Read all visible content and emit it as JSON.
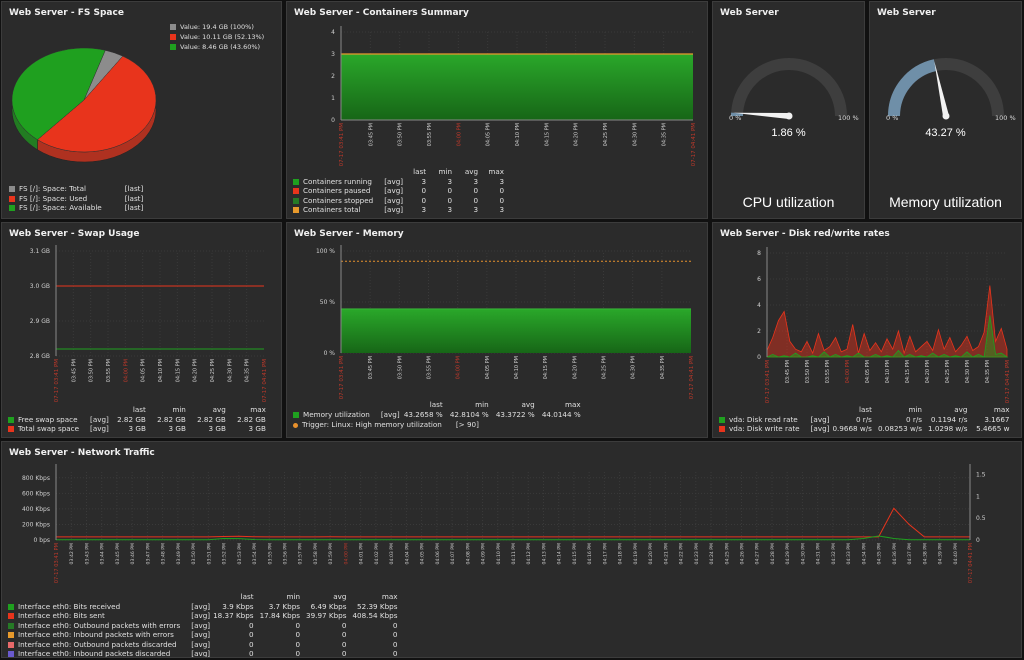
{
  "colors": {
    "green": "#1fa01f",
    "red": "#e8341c",
    "gray": "#8c8c8c",
    "orange": "#e89a2c",
    "pink": "#e86a6a",
    "purple": "#6a5acd",
    "darkgreen": "#267a26",
    "dashed": "#e8912c"
  },
  "fs": {
    "title": "Web Server - FS Space",
    "pie": [
      {
        "label": "Value: 19.4 GB (100%)",
        "color": "gray"
      },
      {
        "label": "Value: 10.11 GB (52.13%)",
        "color": "red"
      },
      {
        "label": "Value: 8.46 GB (43.60%)",
        "color": "green"
      }
    ],
    "slices": [
      {
        "name": "Total",
        "pct": 4.27,
        "color": "#8c8c8c"
      },
      {
        "name": "Used",
        "pct": 52.13,
        "color": "#e8341c"
      },
      {
        "name": "Available",
        "pct": 43.6,
        "color": "#1fa01f"
      }
    ],
    "legend": [
      {
        "name": "FS [/]: Space: Total",
        "agg": "[last]",
        "color": "gray"
      },
      {
        "name": "FS [/]: Space: Used",
        "agg": "[last]",
        "color": "red"
      },
      {
        "name": "FS [/]: Space: Available",
        "agg": "[last]",
        "color": "green"
      }
    ]
  },
  "containers": {
    "title": "Web Server - Containers Summary",
    "yticks": [
      "0",
      "1",
      "2",
      "3",
      "4"
    ],
    "xstart": "07-17 03:41 PM",
    "xend": "07-17 04:41 PM",
    "xticks": [
      "03:45 PM",
      "03:50 PM",
      "03:55 PM",
      "04:00 PM",
      "04:05 PM",
      "04:10 PM",
      "04:15 PM",
      "04:20 PM",
      "04:25 PM",
      "04:30 PM",
      "04:35 PM"
    ],
    "headers": [
      "last",
      "min",
      "avg",
      "max"
    ],
    "rows": [
      {
        "name": "Containers running",
        "agg": "[avg]",
        "vals": [
          "3",
          "3",
          "3",
          "3"
        ],
        "color": "green"
      },
      {
        "name": "Containers paused",
        "agg": "[avg]",
        "vals": [
          "0",
          "0",
          "0",
          "0"
        ],
        "color": "red"
      },
      {
        "name": "Containers stopped",
        "agg": "[avg]",
        "vals": [
          "0",
          "0",
          "0",
          "0"
        ],
        "color": "darkgreen"
      },
      {
        "name": "Containers total",
        "agg": "[avg]",
        "vals": [
          "3",
          "3",
          "3",
          "3"
        ],
        "color": "orange"
      }
    ]
  },
  "cpu": {
    "title": "Web Server",
    "min": "0 %",
    "max": "100 %",
    "value": "1.86 %",
    "level": 1.86,
    "label": "CPU utilization"
  },
  "mem": {
    "title": "Web Server",
    "min": "0 %",
    "max": "100 %",
    "value": "43.27 %",
    "level": 43.27,
    "label": "Memory utilization"
  },
  "swap": {
    "title": "Web Server - Swap Usage",
    "yticks": [
      "2.8 GB",
      "2.9 GB",
      "3.0 GB",
      "3.1 GB"
    ],
    "xstart": "07-17 03:41 PM",
    "xend": "07-17 04:41 PM",
    "xticks": [
      "03:45 PM",
      "03:50 PM",
      "03:55 PM",
      "04:00 PM",
      "04:05 PM",
      "04:10 PM",
      "04:15 PM",
      "04:20 PM",
      "04:25 PM",
      "04:30 PM",
      "04:35 PM"
    ],
    "headers": [
      "last",
      "min",
      "avg",
      "max"
    ],
    "rows": [
      {
        "name": "Free swap space",
        "agg": "[avg]",
        "vals": [
          "2.82 GB",
          "2.82 GB",
          "2.82 GB",
          "2.82 GB"
        ],
        "color": "green"
      },
      {
        "name": "Total swap space",
        "agg": "[avg]",
        "vals": [
          "3 GB",
          "3 GB",
          "3 GB",
          "3 GB"
        ],
        "color": "red"
      }
    ]
  },
  "memory": {
    "title": "Web Server - Memory",
    "yticks": [
      "0 %",
      "50 %",
      "100 %"
    ],
    "xstart": "07-17 03:41 PM",
    "xend": "07-17 04:41 PM",
    "xticks": [
      "03:45 PM",
      "03:50 PM",
      "03:55 PM",
      "04:00 PM",
      "04:05 PM",
      "04:10 PM",
      "04:15 PM",
      "04:20 PM",
      "04:25 PM",
      "04:30 PM",
      "04:35 PM"
    ],
    "headers": [
      "last",
      "min",
      "avg",
      "max"
    ],
    "rows": [
      {
        "name": "Memory utilization",
        "agg": "[avg]",
        "vals": [
          "43.2658 %",
          "42.8104 %",
          "43.3722 %",
          "44.0144 %"
        ],
        "color": "green"
      }
    ],
    "trigger": {
      "name": "Trigger: Linux: High memory utilization",
      "cond": "[> 90]"
    }
  },
  "disk": {
    "title": "Web Server - Disk red/write rates",
    "yticks": [
      "0",
      "2",
      "4",
      "6",
      "8"
    ],
    "xstart": "07-17 03:41 PM",
    "xend": "07-17 04:41 PM",
    "xticks": [
      "03:45 PM",
      "03:50 PM",
      "03:55 PM",
      "04:00 PM",
      "04:05 PM",
      "04:10 PM",
      "04:15 PM",
      "04:20 PM",
      "04:25 PM",
      "04:30 PM",
      "04:35 PM"
    ],
    "headers": [
      "last",
      "min",
      "avg",
      "max"
    ],
    "rows": [
      {
        "name": "vda: Disk read rate",
        "agg": "[avg]",
        "vals": [
          "0 r/s",
          "0 r/s",
          "0.1194 r/s",
          "3.1667"
        ],
        "color": "green"
      },
      {
        "name": "vda: Disk write rate",
        "agg": "[avg]",
        "vals": [
          "0.9668 w/s",
          "0.08253 w/s",
          "1.0298 w/s",
          "5.4665 w"
        ],
        "color": "red"
      }
    ]
  },
  "net": {
    "title": "Web Server - Network Traffic",
    "yticks": [
      "0 bps",
      "200 Kbps",
      "400 Kbps",
      "600 Kbps",
      "800 Kbps"
    ],
    "y2ticks": [
      "0",
      "0.5",
      "1",
      "1.5"
    ],
    "xstart": "07-17 03:41 PM",
    "xend": "07-17 04:41 PM",
    "xticks": [
      "03:42 PM",
      "03:43 PM",
      "03:44 PM",
      "03:45 PM",
      "03:46 PM",
      "03:47 PM",
      "03:48 PM",
      "03:49 PM",
      "03:50 PM",
      "03:51 PM",
      "03:52 PM",
      "03:53 PM",
      "03:54 PM",
      "03:55 PM",
      "03:56 PM",
      "03:57 PM",
      "03:58 PM",
      "03:59 PM",
      "04:00 PM",
      "04:01 PM",
      "04:02 PM",
      "04:03 PM",
      "04:04 PM",
      "04:05 PM",
      "04:06 PM",
      "04:07 PM",
      "04:08 PM",
      "04:09 PM",
      "04:10 PM",
      "04:11 PM",
      "04:12 PM",
      "04:13 PM",
      "04:14 PM",
      "04:15 PM",
      "04:16 PM",
      "04:17 PM",
      "04:18 PM",
      "04:19 PM",
      "04:20 PM",
      "04:21 PM",
      "04:22 PM",
      "04:23 PM",
      "04:24 PM",
      "04:25 PM",
      "04:26 PM",
      "04:27 PM",
      "04:28 PM",
      "04:29 PM",
      "04:30 PM",
      "04:31 PM",
      "04:32 PM",
      "04:33 PM",
      "04:34 PM",
      "04:35 PM",
      "04:36 PM",
      "04:37 PM",
      "04:38 PM",
      "04:39 PM",
      "04:40 PM"
    ],
    "headers": [
      "last",
      "min",
      "avg",
      "max"
    ],
    "rows": [
      {
        "name": "Interface eth0: Bits received",
        "agg": "[avg]",
        "vals": [
          "3.9 Kbps",
          "3.7 Kbps",
          "6.49 Kbps",
          "52.39 Kbps"
        ],
        "color": "green"
      },
      {
        "name": "Interface eth0: Bits sent",
        "agg": "[avg]",
        "vals": [
          "18.37 Kbps",
          "17.84 Kbps",
          "39.97 Kbps",
          "408.54 Kbps"
        ],
        "color": "red"
      },
      {
        "name": "Interface eth0: Outbound packets with errors",
        "agg": "[avg]",
        "vals": [
          "0",
          "0",
          "0",
          "0"
        ],
        "color": "darkgreen"
      },
      {
        "name": "Interface eth0: Inbound packets with errors",
        "agg": "[avg]",
        "vals": [
          "0",
          "0",
          "0",
          "0"
        ],
        "color": "orange"
      },
      {
        "name": "Interface eth0: Outbound packets discarded",
        "agg": "[avg]",
        "vals": [
          "0",
          "0",
          "0",
          "0"
        ],
        "color": "pink"
      },
      {
        "name": "Interface eth0: Inbound packets discarded",
        "agg": "[avg]",
        "vals": [
          "0",
          "0",
          "0",
          "0"
        ],
        "color": "purple"
      }
    ]
  },
  "chart_data": [
    {
      "type": "pie",
      "title": "Web Server - FS Space",
      "categories": [
        "Space: Total",
        "Space: Used",
        "Space: Available"
      ],
      "values": [
        19.4,
        10.11,
        8.46
      ]
    },
    {
      "type": "area",
      "title": "Web Server - Containers Summary",
      "ylim": [
        0,
        4
      ],
      "series": [
        {
          "name": "Containers running",
          "values": [
            3,
            3
          ]
        },
        {
          "name": "Containers total",
          "values": [
            3,
            3
          ]
        },
        {
          "name": "Containers paused",
          "values": [
            0,
            0
          ]
        },
        {
          "name": "Containers stopped",
          "values": [
            0,
            0
          ]
        }
      ]
    },
    {
      "type": "line",
      "title": "Web Server - Swap Usage",
      "ylim": [
        2.8,
        3.1
      ],
      "series": [
        {
          "name": "Free swap space",
          "values": [
            2.82,
            2.82
          ]
        },
        {
          "name": "Total swap space",
          "values": [
            3,
            3
          ]
        }
      ]
    },
    {
      "type": "area",
      "title": "Web Server - Memory",
      "ylim": [
        0,
        100
      ],
      "series": [
        {
          "name": "Memory utilization",
          "values": [
            43.27,
            43.27
          ]
        }
      ],
      "threshold": 90
    },
    {
      "type": "area",
      "title": "Web Server - Disk red/write rates",
      "ylim": [
        0,
        8
      ],
      "series": [
        {
          "name": "vda: Disk read rate",
          "values": [
            0,
            0.2,
            0,
            0.1,
            0,
            0.3,
            0,
            0,
            0.1,
            0,
            0.4,
            0,
            0.2,
            0,
            0.1,
            0,
            0.3,
            0,
            0,
            0.2,
            0,
            0.1,
            0,
            0.5,
            0,
            0.2,
            0,
            0.1,
            0,
            0.3,
            0,
            0.2,
            0,
            0.1,
            0,
            0.4,
            0,
            0.2,
            0,
            3.2,
            0.2,
            0.3,
            0
          ]
        },
        {
          "name": "vda: Disk write rate",
          "values": [
            0.5,
            1.5,
            2.8,
            3.5,
            1.2,
            0.6,
            0.4,
            1.2,
            0.3,
            1.8,
            0.5,
            0.8,
            1.5,
            0.4,
            0.6,
            2.5,
            0.3,
            1.8,
            0.5,
            1.1,
            0.4,
            1.4,
            0.6,
            2.0,
            0.3,
            1.6,
            0.4,
            0.8,
            1.2,
            0.5,
            2.1,
            0.6,
            1.5,
            0.4,
            0.9,
            1.6,
            0.5,
            0.8,
            1.9,
            5.5,
            1.2,
            2.2,
            0.6
          ]
        }
      ]
    },
    {
      "type": "line",
      "title": "Web Server - Network Traffic",
      "y_unit": "Kbps",
      "ylim": [
        0,
        900
      ],
      "series": [
        {
          "name": "Interface eth0: Bits sent",
          "values": [
            40,
            40,
            40,
            40,
            40,
            40,
            40,
            40,
            40,
            40,
            40,
            45,
            48,
            42,
            40,
            40,
            40,
            40,
            42,
            40,
            40,
            40,
            40,
            40,
            40,
            40,
            40,
            40,
            40,
            40,
            40,
            40,
            40,
            40,
            40,
            40,
            40,
            40,
            40,
            40,
            40,
            40,
            40,
            40,
            40,
            40,
            40,
            40,
            40,
            40,
            40,
            40,
            40,
            40,
            40,
            408,
            200,
            40,
            40,
            40,
            40
          ]
        },
        {
          "name": "Interface eth0: Bits received",
          "values": [
            4,
            4,
            4,
            4,
            4,
            4,
            4,
            4,
            4,
            4,
            4,
            20,
            18,
            6,
            4,
            4,
            4,
            4,
            4,
            4,
            4,
            4,
            4,
            4,
            4,
            4,
            4,
            4,
            4,
            4,
            4,
            4,
            4,
            4,
            4,
            4,
            4,
            4,
            4,
            4,
            4,
            4,
            4,
            4,
            4,
            4,
            4,
            4,
            4,
            4,
            4,
            4,
            4,
            20,
            52,
            20,
            4,
            4,
            4,
            4,
            4
          ]
        }
      ]
    }
  ]
}
